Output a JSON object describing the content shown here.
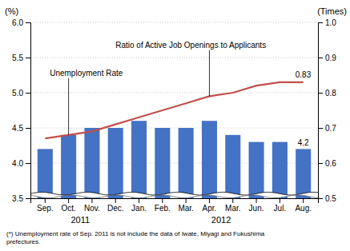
{
  "chart_data": {
    "type": "bar",
    "categories": [
      "Sep.",
      "Oct.",
      "Nov.",
      "Dec.",
      "Jan.",
      "Feb.",
      "Mar.",
      "Apr.",
      "Mar.",
      "Jun.",
      "Jul.",
      "Aug."
    ],
    "series": [
      {
        "name": "Unemployment Rate",
        "type": "bar",
        "color": "#4472C4",
        "values": [
          4.2,
          4.4,
          4.5,
          4.5,
          4.6,
          4.5,
          4.5,
          4.6,
          4.4,
          4.3,
          4.3,
          4.2
        ],
        "value_labels": [
          null,
          null,
          null,
          null,
          null,
          null,
          null,
          null,
          null,
          null,
          null,
          "4.2"
        ]
      },
      {
        "name": "Ratio of Active Job Openings to Applicants",
        "type": "line",
        "axis": "y2",
        "color": "#C0504D",
        "values": [
          0.67,
          0.68,
          0.69,
          0.71,
          0.73,
          0.75,
          0.77,
          0.79,
          0.8,
          0.82,
          0.83,
          0.83
        ],
        "value_labels": [
          null,
          null,
          null,
          null,
          null,
          null,
          null,
          null,
          null,
          null,
          null,
          "0.83"
        ]
      }
    ],
    "ylabel": "(%)",
    "y2label": "(Times)",
    "ylim": [
      3.5,
      6.0
    ],
    "yticks": [
      3.5,
      {
        "value": 4.0,
        "label": "4.0"
      },
      4.5,
      {
        "value": 5.0,
        "label": "5.0"
      },
      5.5,
      {
        "value": 6.0,
        "label": "6.0"
      }
    ],
    "y2lim": [
      0.5,
      1.0
    ],
    "y2ticks": [
      0.5,
      0.6,
      0.7,
      0.8,
      0.9,
      {
        "value": 1.0,
        "label": "1.0"
      }
    ],
    "grid": true,
    "x_group_labels": [
      "2011",
      "2012"
    ],
    "footnote": "(*) Unemployment rate of Sep. 2011 is not include the data of Iwate, Miyagi and Fukushima\nprefectures."
  }
}
